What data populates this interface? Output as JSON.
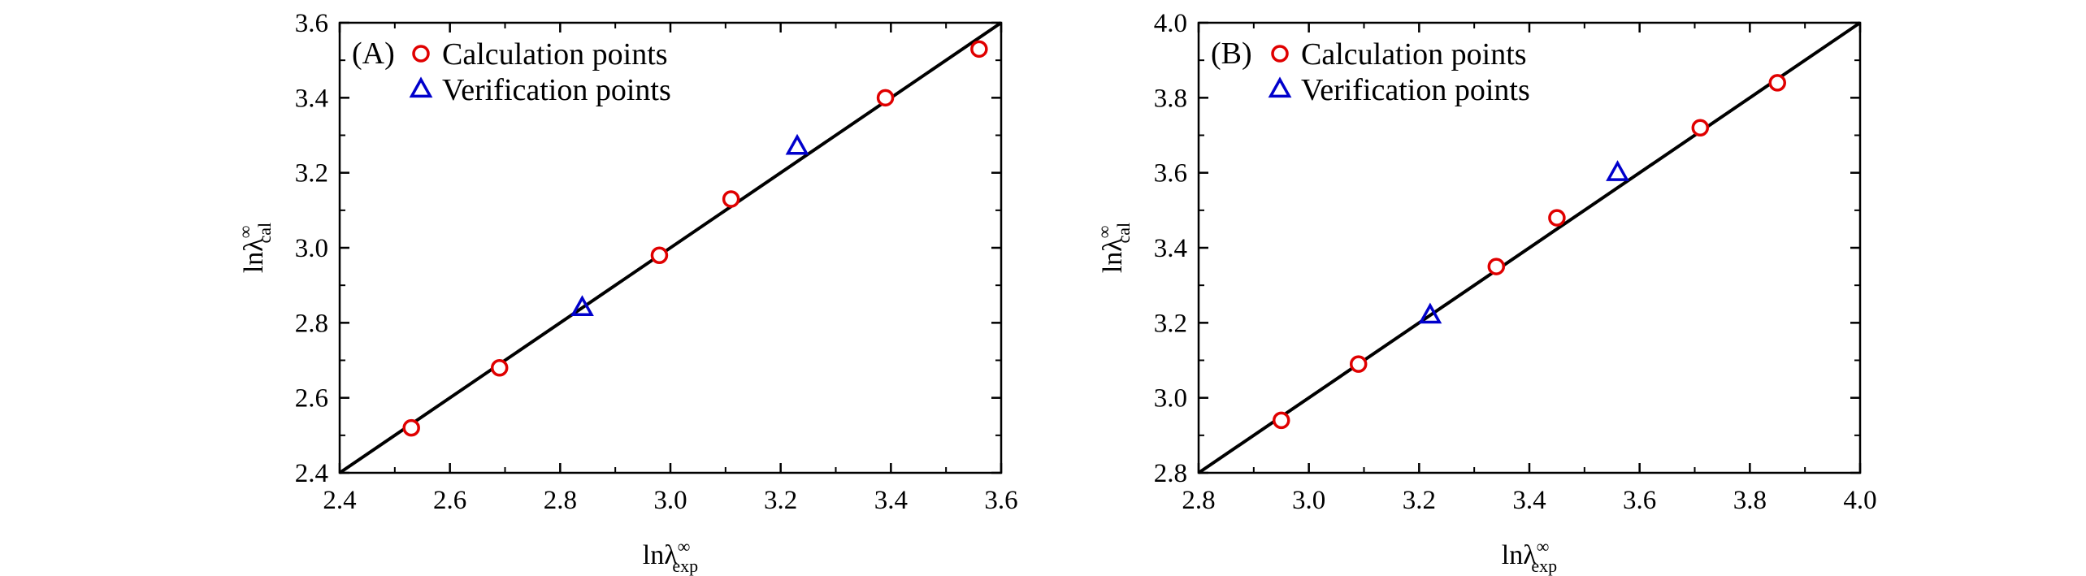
{
  "chart_data": [
    {
      "panel_label": "(A)",
      "type": "scatter",
      "xlabel": {
        "main": "lnλ",
        "sup": "∞",
        "sub": "exp"
      },
      "ylabel": {
        "main": "lnλ",
        "sup": "∞",
        "sub": "cal"
      },
      "xlim": [
        2.4,
        3.6
      ],
      "ylim": [
        2.4,
        3.6
      ],
      "xticks": [
        "2.4",
        "2.6",
        "2.8",
        "3.0",
        "3.2",
        "3.4",
        "3.6"
      ],
      "yticks": [
        "2.4",
        "2.6",
        "2.8",
        "3.0",
        "3.2",
        "3.4",
        "3.6"
      ],
      "legend_position": "top-left",
      "grid": false,
      "fit_line": [
        [
          2.4,
          2.4
        ],
        [
          3.6,
          3.6
        ]
      ],
      "series": [
        {
          "name": "Calculation points",
          "marker": "circle",
          "color": "#e00000",
          "points": [
            [
              2.53,
              2.52
            ],
            [
              2.69,
              2.68
            ],
            [
              2.98,
              2.98
            ],
            [
              3.11,
              3.13
            ],
            [
              3.39,
              3.4
            ],
            [
              3.56,
              3.53
            ]
          ]
        },
        {
          "name": "Verification points",
          "marker": "triangle",
          "color": "#0000cc",
          "points": [
            [
              2.84,
              2.84
            ],
            [
              3.23,
              3.27
            ]
          ]
        }
      ]
    },
    {
      "panel_label": "(B)",
      "type": "scatter",
      "xlabel": {
        "main": "lnλ",
        "sup": "∞",
        "sub": "exp"
      },
      "ylabel": {
        "main": "lnλ",
        "sup": "∞",
        "sub": "cal"
      },
      "xlim": [
        2.8,
        4.0
      ],
      "ylim": [
        2.8,
        4.0
      ],
      "xticks": [
        "2.8",
        "3.0",
        "3.2",
        "3.4",
        "3.6",
        "3.8",
        "4.0"
      ],
      "yticks": [
        "2.8",
        "3.0",
        "3.2",
        "3.4",
        "3.6",
        "3.8",
        "4.0"
      ],
      "legend_position": "top-left",
      "grid": false,
      "fit_line": [
        [
          2.8,
          2.8
        ],
        [
          4.0,
          4.0
        ]
      ],
      "series": [
        {
          "name": "Calculation points",
          "marker": "circle",
          "color": "#e00000",
          "points": [
            [
              2.95,
              2.94
            ],
            [
              3.09,
              3.09
            ],
            [
              3.34,
              3.35
            ],
            [
              3.45,
              3.48
            ],
            [
              3.71,
              3.72
            ],
            [
              3.85,
              3.84
            ]
          ]
        },
        {
          "name": "Verification points",
          "marker": "triangle",
          "color": "#0000cc",
          "points": [
            [
              3.22,
              3.22
            ],
            [
              3.56,
              3.6
            ]
          ]
        }
      ]
    }
  ]
}
